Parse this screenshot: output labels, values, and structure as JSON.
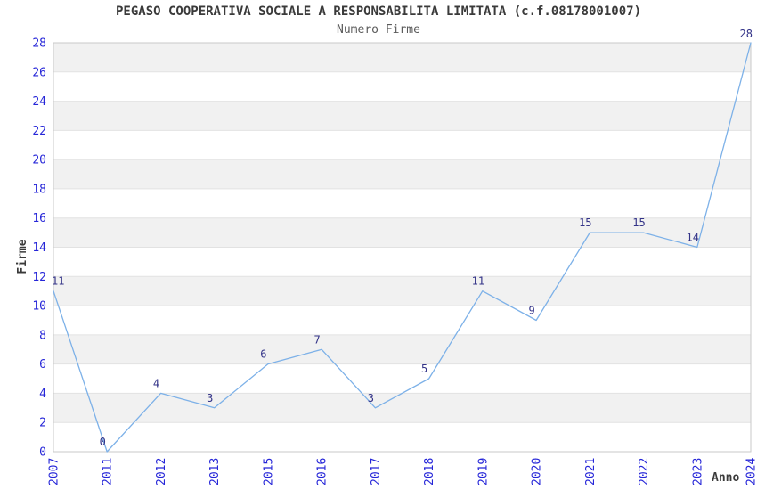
{
  "chart_data": {
    "type": "line",
    "title": "PEGASO COOPERATIVA SOCIALE A RESPONSABILITA LIMITATA (c.f.08178001007)",
    "subtitle": "Numero Firme",
    "xlabel": "Anno",
    "ylabel": "Firme",
    "categories": [
      "2007",
      "2011",
      "2012",
      "2013",
      "2015",
      "2016",
      "2017",
      "2018",
      "2019",
      "2020",
      "2021",
      "2022",
      "2023",
      "2024"
    ],
    "values": [
      11,
      0,
      4,
      3,
      6,
      7,
      3,
      5,
      11,
      9,
      15,
      15,
      14,
      28
    ],
    "ylim": [
      0,
      28
    ],
    "ytick_step": 2,
    "grid": true,
    "legend": false,
    "banded_background": true,
    "colors": {
      "line": "#7db1e8",
      "tick_label": "#2626d8",
      "data_label": "#333388",
      "band": "#f1f1f1",
      "gridline": "#e2e2e2",
      "border": "#c9c9c9",
      "title": "#3a3a3a",
      "subtitle": "#5a5a5a",
      "axis_label": "#3a3a3a",
      "background": "#ffffff"
    }
  }
}
